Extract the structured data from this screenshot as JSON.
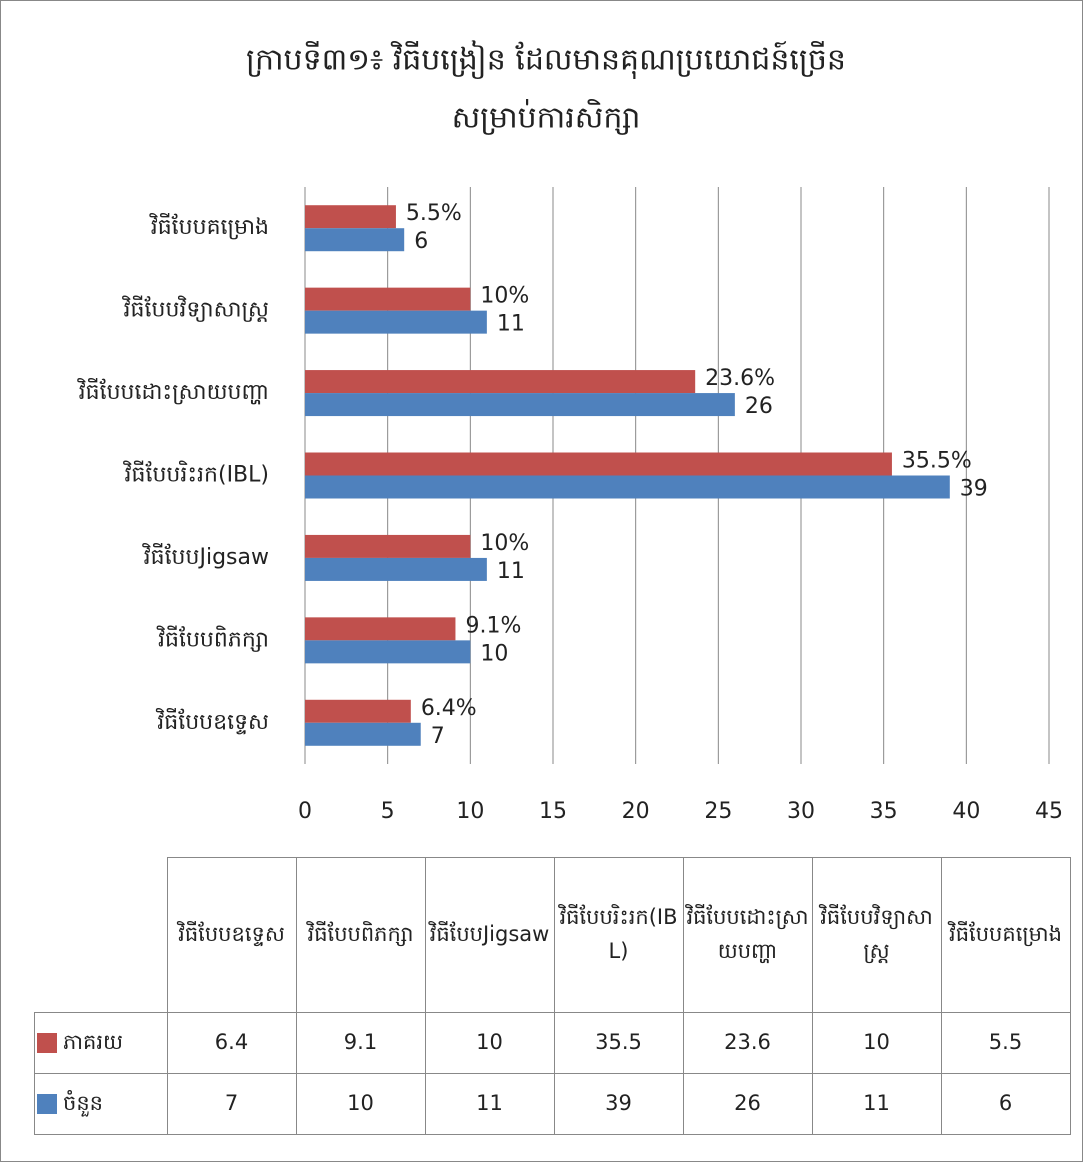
{
  "chart_data": {
    "type": "bar",
    "orientation": "horizontal",
    "title": [
      "ក្រាបទី៣១៖ វិធីបង្រៀន ដែលមានគុណប្រយោជន៍ច្រើន",
      "សម្រាប់ការសិក្សា"
    ],
    "categories": [
      "វិធីបែបឧទ្ទេស",
      "វិធីបែបពិភក្សា",
      "វិធីបែបJigsaw",
      "វិធីបែបរិះរក(IBL)",
      "វិធីបែបដោះស្រាយបញ្ហា",
      "វិធីបែបវិទ្យាសាស្ត្រ",
      "វិធីបែបគម្រោង"
    ],
    "series": [
      {
        "name": "ភាគរយ",
        "color": "#c0504d",
        "values": [
          6.4,
          9.1,
          10,
          35.5,
          23.6,
          10,
          5.5
        ],
        "value_labels": [
          "6.4%",
          "9.1%",
          "10%",
          "35.5%",
          "23.6%",
          "10%",
          "5.5%"
        ]
      },
      {
        "name": "ចំនួន",
        "color": "#4f81bd",
        "values": [
          7,
          10,
          11,
          39,
          26,
          11,
          6
        ]
      }
    ],
    "xlim": [
      0,
      45
    ],
    "xticks": [
      0,
      5,
      10,
      15,
      20,
      25,
      30,
      35,
      40,
      45
    ],
    "grid": true,
    "data_table": true
  }
}
